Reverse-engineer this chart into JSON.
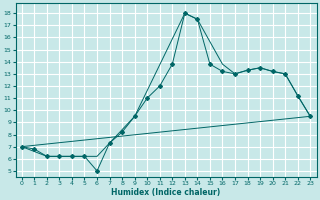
{
  "xlabel": "Humidex (Indice chaleur)",
  "bg_color": "#c8e8e8",
  "grid_color": "#ffffff",
  "line_color": "#006666",
  "xlim": [
    -0.5,
    23.5
  ],
  "ylim": [
    4.5,
    18.8
  ],
  "yticks": [
    5,
    6,
    7,
    8,
    9,
    10,
    11,
    12,
    13,
    14,
    15,
    16,
    17,
    18
  ],
  "xticks": [
    0,
    1,
    2,
    3,
    4,
    5,
    6,
    7,
    8,
    9,
    10,
    11,
    12,
    13,
    14,
    15,
    16,
    17,
    18,
    19,
    20,
    21,
    22,
    23
  ],
  "line1_x": [
    0,
    1,
    2,
    3,
    4,
    5,
    6,
    7,
    8,
    9,
    10,
    11,
    12,
    13,
    14,
    15,
    16,
    17,
    18,
    19,
    20,
    21,
    22,
    23
  ],
  "line1_y": [
    7.0,
    6.8,
    6.2,
    6.2,
    6.2,
    6.2,
    5.0,
    7.3,
    8.2,
    9.5,
    11.0,
    12.0,
    13.8,
    18.0,
    17.5,
    13.8,
    13.2,
    13.0,
    13.3,
    13.5,
    13.2,
    13.0,
    11.2,
    9.5
  ],
  "line2_x": [
    0,
    23
  ],
  "line2_y": [
    7.0,
    9.5
  ],
  "line3_x": [
    0,
    2,
    6,
    9,
    13,
    14,
    16,
    17,
    18,
    19,
    20,
    21,
    22,
    23
  ],
  "line3_y": [
    7.0,
    6.2,
    6.2,
    9.5,
    18.0,
    17.5,
    13.8,
    13.0,
    13.3,
    13.5,
    13.2,
    13.0,
    11.2,
    9.5
  ]
}
